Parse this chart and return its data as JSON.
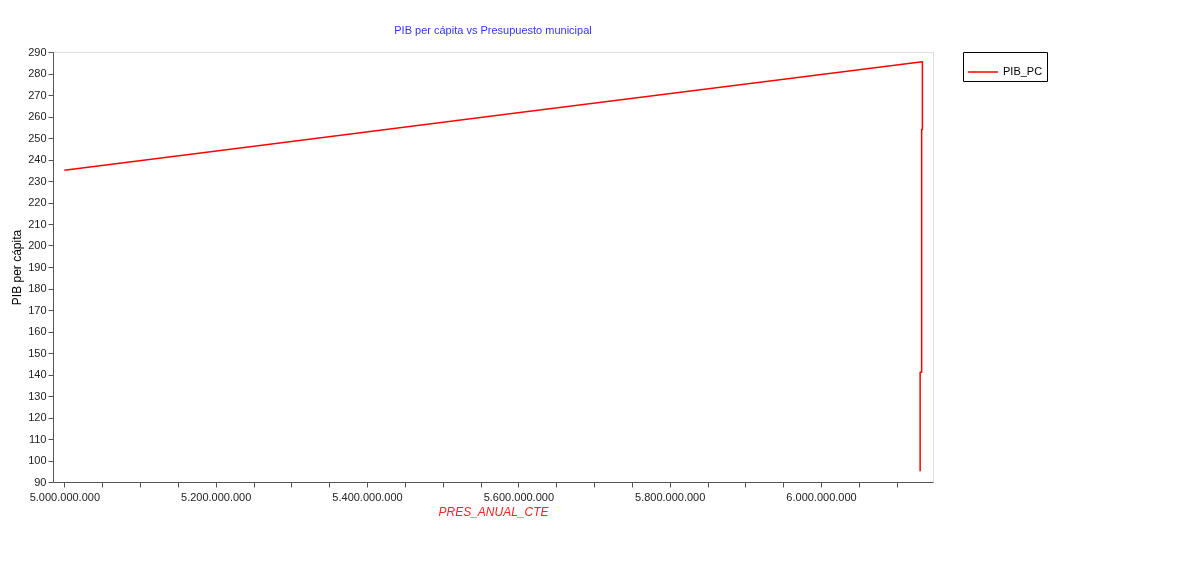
{
  "chart_data": {
    "type": "line",
    "title": "PIB per cápita vs Presupuesto municipal",
    "xlabel": "PRES_ANUAL_CTE",
    "ylabel": "PIB per cápita",
    "x": [
      5000000000,
      6134000000,
      6134000000,
      6133000000,
      6133000000,
      6131000000,
      6131000000
    ],
    "series": [
      {
        "name": "PIB_PC",
        "color": "#ff0000",
        "values": [
          235,
          285.5,
          254,
          254,
          141,
          141,
          95
        ]
      }
    ],
    "xlim": [
      4985000000,
      6148000000
    ],
    "xticks": [
      {
        "value": 5000000000,
        "label": "5.000.000.000"
      },
      {
        "value": 5050000000,
        "label": null
      },
      {
        "value": 5100000000,
        "label": null
      },
      {
        "value": 5150000000,
        "label": null
      },
      {
        "value": 5200000000,
        "label": "5.200.000.000"
      },
      {
        "value": 5250000000,
        "label": null
      },
      {
        "value": 5300000000,
        "label": null
      },
      {
        "value": 5350000000,
        "label": null
      },
      {
        "value": 5400000000,
        "label": "5.400.000.000"
      },
      {
        "value": 5450000000,
        "label": null
      },
      {
        "value": 5500000000,
        "label": null
      },
      {
        "value": 5550000000,
        "label": null
      },
      {
        "value": 5600000000,
        "label": "5.600.000.000"
      },
      {
        "value": 5650000000,
        "label": null
      },
      {
        "value": 5700000000,
        "label": null
      },
      {
        "value": 5750000000,
        "label": null
      },
      {
        "value": 5800000000,
        "label": "5.800.000.000"
      },
      {
        "value": 5850000000,
        "label": null
      },
      {
        "value": 5900000000,
        "label": null
      },
      {
        "value": 5950000000,
        "label": null
      },
      {
        "value": 6000000000,
        "label": "6.000.000.000"
      },
      {
        "value": 6050000000,
        "label": null
      },
      {
        "value": 6100000000,
        "label": null
      }
    ],
    "ylim": [
      90,
      290
    ],
    "yticks": [
      90,
      100,
      110,
      120,
      130,
      140,
      150,
      160,
      170,
      180,
      190,
      200,
      210,
      220,
      230,
      240,
      250,
      260,
      270,
      280,
      290
    ],
    "grid": false,
    "legend": "top right",
    "marker": "none",
    "line_style": "solid"
  }
}
